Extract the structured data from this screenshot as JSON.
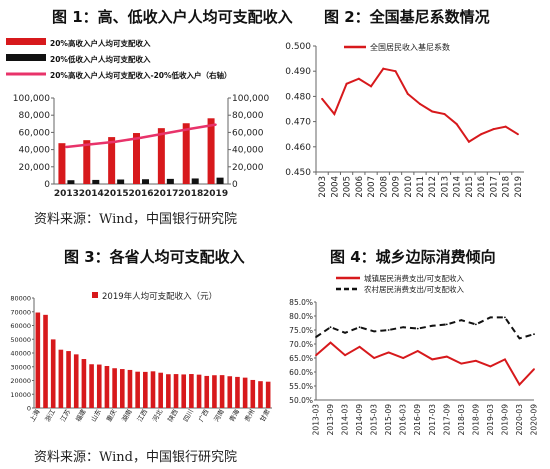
{
  "titles": {
    "fig1": "图 1：高、低收入户人均可支配收入",
    "fig2": "图 2：全国基尼系数情况",
    "fig3": "图 3：各省人均可支配收入",
    "fig4": "图 4：城乡边际消费倾向"
  },
  "sources": {
    "top": "资料来源：Wind，中国银行研究院",
    "bottom": "资料来源：Wind，中国银行研究院"
  },
  "colors": {
    "red": "#d7191c",
    "black": "#111111",
    "pink": "#e8336a",
    "axis": "#666666"
  },
  "chart_data": [
    {
      "id": "fig1",
      "type": "bar",
      "categories": [
        "2013",
        "2014",
        "2015",
        "2016",
        "2017",
        "2018",
        "2019"
      ],
      "series": [
        {
          "name": "20%高收入户人均可支配收入",
          "type": "bar",
          "axis": "left",
          "values": [
            47457,
            50968,
            54544,
            59259,
            64934,
            70640,
            76401
          ]
        },
        {
          "name": "20%低收入户人均可支配收入",
          "type": "bar",
          "axis": "left",
          "values": [
            4402,
            4747,
            5221,
            5529,
            5958,
            6440,
            7380
          ]
        },
        {
          "name": "20%高收入户人均可支配收入-20%低收入户（右轴）",
          "type": "line",
          "axis": "right",
          "values": [
            43055,
            46221,
            49323,
            53730,
            58976,
            64200,
            69021
          ]
        }
      ],
      "yticks": [
        "0",
        "20,000",
        "40,000",
        "60,000",
        "80,000",
        "100,000"
      ],
      "ylim": [
        0,
        100000
      ],
      "y2ticks": [
        "0",
        "20,000",
        "40,000",
        "60,000",
        "80,000",
        "100,000"
      ],
      "y2lim": [
        0,
        100000
      ],
      "legend": "top"
    },
    {
      "id": "fig2",
      "type": "line",
      "x": [
        "2003",
        "2004",
        "2005",
        "2006",
        "2007",
        "2008",
        "2009",
        "2010",
        "2011",
        "2012",
        "2013",
        "2014",
        "2015",
        "2016",
        "2017",
        "2018",
        "2019"
      ],
      "series": [
        {
          "name": "全国居民收入基尼系数",
          "values": [
            0.479,
            0.473,
            0.485,
            0.487,
            0.484,
            0.491,
            0.49,
            0.481,
            0.477,
            0.474,
            0.473,
            0.469,
            0.462,
            0.465,
            0.467,
            0.468,
            0.465
          ]
        }
      ],
      "yticks": [
        "0.450",
        "0.460",
        "0.470",
        "0.480",
        "0.490",
        "0.500"
      ],
      "ylim": [
        0.45,
        0.5
      ],
      "legend": "top-left"
    },
    {
      "id": "fig3",
      "type": "bar",
      "categories": [
        "上海",
        "北京",
        "浙江",
        "天津",
        "江苏",
        "广东",
        "福建",
        "辽宁",
        "山东",
        "内蒙古",
        "重庆",
        "湖北",
        "湖南",
        "安徽",
        "江西",
        "海南",
        "河北",
        "吉林",
        "陕西",
        "宁夏",
        "四川",
        "黑龙江",
        "广西",
        "山西",
        "河南",
        "新疆",
        "青海",
        "云南",
        "贵州",
        "西藏",
        "甘肃"
      ],
      "xticks": [
        "上海",
        "浙江",
        "江苏",
        "福建",
        "山东",
        "重庆",
        "湖南",
        "江西",
        "河北",
        "陕西",
        "四川",
        "广西",
        "河南",
        "青海",
        "贵州",
        "甘肃"
      ],
      "series": [
        {
          "name": "2019年人均可支配收入（元）",
          "values": [
            69442,
            67756,
            49899,
            42404,
            41400,
            39014,
            35616,
            31820,
            31597,
            30555,
            28920,
            28319,
            27680,
            26415,
            26262,
            26679,
            25665,
            24563,
            24666,
            24412,
            24703,
            24254,
            23328,
            23828,
            23903,
            23103,
            22618,
            22082,
            20397,
            19501,
            19139
          ]
        }
      ],
      "yticks": [
        "0",
        "10000",
        "20000",
        "30000",
        "40000",
        "50000",
        "60000",
        "70000",
        "80000"
      ],
      "ylim": [
        0,
        80000
      ],
      "legend": "top-left"
    },
    {
      "id": "fig4",
      "type": "line",
      "x": [
        "2013-03",
        "2013-09",
        "2014-03",
        "2014-09",
        "2015-03",
        "2015-09",
        "2016-03",
        "2016-09",
        "2017-03",
        "2017-09",
        "2018-03",
        "2018-09",
        "2019-03",
        "2019-09",
        "2020-03",
        "2020-09"
      ],
      "series": [
        {
          "name": "城镇居民消费支出/可支配收入",
          "values": [
            66.0,
            70.5,
            66.0,
            69.0,
            65.0,
            67.0,
            65.0,
            67.5,
            64.5,
            65.5,
            63.0,
            64.0,
            62.0,
            64.5,
            55.5,
            61.0
          ]
        },
        {
          "name": "农村居民消费支出/可支配收入",
          "values": [
            72.5,
            76.0,
            74.0,
            76.0,
            74.5,
            75.0,
            76.0,
            75.5,
            76.5,
            77.0,
            78.5,
            77.0,
            79.5,
            79.5,
            72.0,
            73.5
          ]
        }
      ],
      "yticks": [
        "50.0%",
        "55.0%",
        "60.0%",
        "65.0%",
        "70.0%",
        "75.0%",
        "80.0%",
        "85.0%"
      ],
      "ylim": [
        50,
        85
      ],
      "legend": "top"
    }
  ]
}
